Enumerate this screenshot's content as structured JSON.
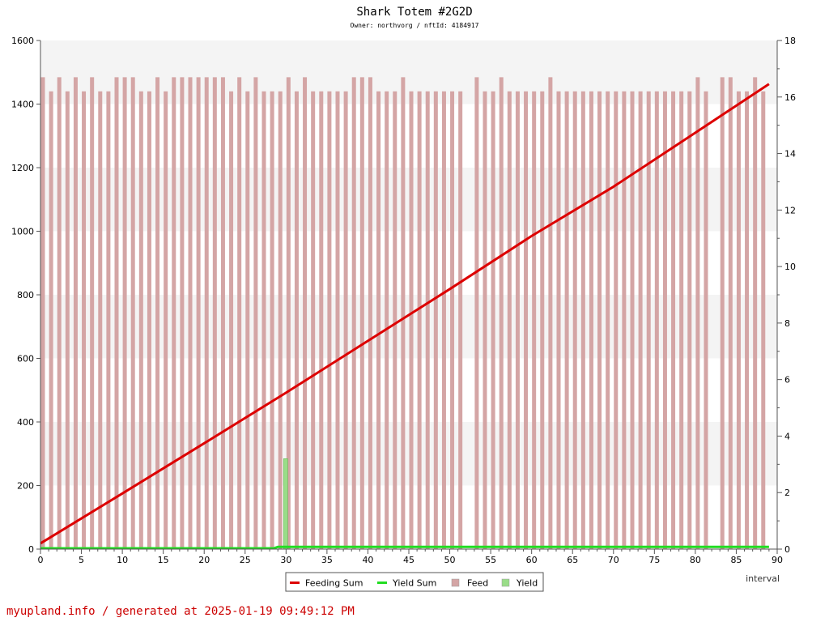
{
  "chart_data": {
    "type": "bar",
    "title": "Shark Totem #2G2D",
    "subtitle": "Owner: northvorg / nftId: 4184917",
    "xlabel": "interval",
    "xlim": [
      0,
      90
    ],
    "ylim_left": [
      0,
      1600
    ],
    "ylim_right": [
      0,
      18
    ],
    "x_ticks": [
      0,
      5,
      10,
      15,
      20,
      25,
      30,
      35,
      40,
      45,
      50,
      55,
      60,
      65,
      70,
      75,
      80,
      85,
      90
    ],
    "left_ticks": [
      0,
      200,
      400,
      600,
      800,
      1000,
      1200,
      1400,
      1600
    ],
    "right_ticks": [
      0,
      2,
      4,
      6,
      8,
      10,
      12,
      14,
      16,
      18
    ],
    "series": [
      {
        "name": "Feeding Sum",
        "type": "line",
        "axis": "left",
        "color": "#dd0000",
        "x": [
          0,
          10,
          20,
          30,
          40,
          50,
          60,
          70,
          80,
          89
        ],
        "values": [
          18,
          175,
          333,
          492,
          655,
          818,
          985,
          1140,
          1310,
          1463
        ]
      },
      {
        "name": "Yield Sum",
        "type": "line",
        "axis": "right",
        "color": "#22dd22",
        "x": [
          0,
          28.5,
          29,
          89
        ],
        "values": [
          0,
          0,
          0.05,
          0.05
        ]
      },
      {
        "name": "Feed",
        "type": "bar",
        "axis": "right",
        "color": "#d4a5a5",
        "values": [
          16.7,
          16.2,
          16.7,
          16.2,
          16.7,
          16.2,
          16.7,
          16.2,
          16.2,
          16.7,
          16.7,
          16.7,
          16.2,
          16.2,
          16.7,
          16.2,
          16.7,
          16.7,
          16.7,
          16.7,
          16.7,
          16.7,
          16.7,
          16.2,
          16.7,
          16.2,
          16.7,
          16.2,
          16.2,
          16.2,
          16.7,
          16.2,
          16.7,
          16.2,
          16.2,
          16.2,
          16.2,
          16.2,
          16.7,
          16.7,
          16.7,
          16.2,
          16.2,
          16.2,
          16.7,
          16.2,
          16.2,
          16.2,
          16.2,
          16.2,
          16.2,
          16.2,
          0,
          16.7,
          16.2,
          16.2,
          16.7,
          16.2,
          16.2,
          16.2,
          16.2,
          16.2,
          16.7,
          16.2,
          16.2,
          16.2,
          16.2,
          16.2,
          16.2,
          16.2,
          16.2,
          16.2,
          16.2,
          16.2,
          16.2,
          16.2,
          16.2,
          16.2,
          16.2,
          16.2,
          16.7,
          16.2,
          0,
          16.7,
          16.7,
          16.2,
          16.2,
          16.7,
          16.2
        ]
      },
      {
        "name": "Yield",
        "type": "bar",
        "axis": "right",
        "color": "#99dd88",
        "x": [
          30
        ],
        "values": [
          3.2
        ]
      }
    ],
    "legend": {
      "placement": "bottom-center",
      "entries": [
        "Feeding Sum",
        "Yield Sum",
        "Feed",
        "Yield"
      ]
    },
    "grid": true,
    "band_colors": [
      "#f4f4f4",
      "#ffffff"
    ]
  },
  "footer": "myupland.info / generated at 2025-01-19 09:49:12 PM"
}
